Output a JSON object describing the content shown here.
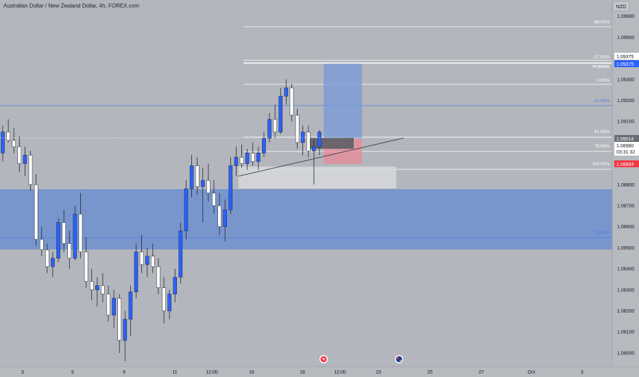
{
  "header": {
    "title": "Australian Dollar / New Zealand Dollar, 4h, FOREX.com"
  },
  "price_axis": {
    "currency_label": "NZD",
    "current_price_tag": "1.09014",
    "countdown_tag": "1.08980",
    "countdown_time": "03:31:32",
    "tp_tag": "1.09375",
    "tp_tag_blue": "1.09375",
    "sl_tag": "1.08894"
  },
  "fib_labels": {
    "ext_68": "-68.00%",
    "ext_27": "-27.00%",
    "tp_label": "TP DIARIO",
    "lvl_0": "0.00%",
    "lvl_618_upper": "61.80%",
    "lvl_618": "61.80%",
    "lvl_786": "78.60%",
    "lvl_100": "100.00%",
    "lvl_786_lower": "78.60%"
  },
  "colors": {
    "background": "#b3b6bc",
    "bull_candle": "#2962ff",
    "bear_candle": "#ffffff",
    "zone_blue": "#6f90cf",
    "sl_red": "#f23645",
    "axis_bg": "#b7babf"
  },
  "chart_data": {
    "type": "candlestick",
    "title": "Australian Dollar / New Zealand Dollar, 4h, FOREX.com",
    "ylabel": "NZD",
    "ylim": [
      1.0793,
      1.0972
    ],
    "ticks": [
      1.096,
      1.095,
      1.094,
      1.093,
      1.092,
      1.091,
      1.089,
      1.088,
      1.087,
      1.086,
      1.085,
      1.084,
      1.083,
      1.082,
      1.081,
      1.08
    ],
    "tick_labels": [
      "1.09600",
      "1.09500",
      "1.09400",
      "1.09300",
      "1.09200",
      "1.09100",
      "1.08900",
      "1.08800",
      "1.08700",
      "1.08600",
      "1.08500",
      "1.08400",
      "1.08300",
      "1.08200",
      "1.08100",
      "1.08000"
    ],
    "x_labels": [
      "3",
      "5",
      "9",
      "11",
      "12:00",
      "16",
      "18",
      "12:00",
      "23",
      "25",
      "27",
      "Oct",
      "3"
    ],
    "candles": [
      [
        1.0895,
        1.0908,
        1.0891,
        1.0905
      ],
      [
        1.0905,
        1.0911,
        1.09,
        1.0901
      ],
      [
        1.0901,
        1.0907,
        1.0895,
        1.0898
      ],
      [
        1.0898,
        1.0903,
        1.0886,
        1.089
      ],
      [
        1.089,
        1.0898,
        1.0884,
        1.0894
      ],
      [
        1.0894,
        1.0896,
        1.0877,
        1.088
      ],
      [
        1.088,
        1.0885,
        1.0851,
        1.0854
      ],
      [
        1.0854,
        1.086,
        1.0846,
        1.0849
      ],
      [
        1.0849,
        1.0852,
        1.0838,
        1.0841
      ],
      [
        1.0841,
        1.0848,
        1.0836,
        1.0845
      ],
      [
        1.0845,
        1.0864,
        1.0843,
        1.0862
      ],
      [
        1.0862,
        1.0868,
        1.0848,
        1.0852
      ],
      [
        1.0852,
        1.0858,
        1.084,
        1.0845
      ],
      [
        1.0845,
        1.087,
        1.0844,
        1.0866
      ],
      [
        1.0866,
        1.0876,
        1.0845,
        1.0848
      ],
      [
        1.0848,
        1.0855,
        1.0831,
        1.0834
      ],
      [
        1.0834,
        1.084,
        1.0825,
        1.083
      ],
      [
        1.083,
        1.0836,
        1.0822,
        1.0832
      ],
      [
        1.0832,
        1.0838,
        1.0824,
        1.0828
      ],
      [
        1.0828,
        1.0832,
        1.0815,
        1.0818
      ],
      [
        1.0818,
        1.083,
        1.0812,
        1.0826
      ],
      [
        1.0826,
        1.0828,
        1.08,
        1.0806
      ],
      [
        1.0806,
        1.082,
        1.0796,
        1.0816
      ],
      [
        1.0816,
        1.0832,
        1.0808,
        1.0829
      ],
      [
        1.0829,
        1.0852,
        1.0826,
        1.0848
      ],
      [
        1.0848,
        1.0856,
        1.0838,
        1.0842
      ],
      [
        1.0842,
        1.085,
        1.0836,
        1.0846
      ],
      [
        1.0846,
        1.0852,
        1.0838,
        1.0841
      ],
      [
        1.0841,
        1.0845,
        1.0828,
        1.0831
      ],
      [
        1.0831,
        1.0836,
        1.0814,
        1.082
      ],
      [
        1.082,
        1.083,
        1.0816,
        1.0828
      ],
      [
        1.0828,
        1.084,
        1.0824,
        1.0836
      ],
      [
        1.0836,
        1.0862,
        1.0833,
        1.0858
      ],
      [
        1.0858,
        1.0882,
        1.0854,
        1.0878
      ],
      [
        1.0878,
        1.0894,
        1.0874,
        1.0889
      ],
      [
        1.0889,
        1.0893,
        1.0875,
        1.0879
      ],
      [
        1.0879,
        1.0888,
        1.0862,
        1.0882
      ],
      [
        1.0882,
        1.089,
        1.0872,
        1.0876
      ],
      [
        1.0876,
        1.0882,
        1.0866,
        1.087
      ],
      [
        1.087,
        1.0876,
        1.0856,
        1.086
      ],
      [
        1.086,
        1.0873,
        1.0853,
        1.0868
      ],
      [
        1.0868,
        1.0893,
        1.0866,
        1.0889
      ],
      [
        1.0889,
        1.0898,
        1.0884,
        1.0893
      ],
      [
        1.0893,
        1.0899,
        1.0888,
        1.089
      ],
      [
        1.089,
        1.0897,
        1.0887,
        1.0895
      ],
      [
        1.0895,
        1.09,
        1.0889,
        1.0891
      ],
      [
        1.0891,
        1.0898,
        1.0887,
        1.0895
      ],
      [
        1.0895,
        1.0905,
        1.0893,
        1.0902
      ],
      [
        1.0902,
        1.0914,
        1.09,
        1.0911
      ],
      [
        1.0911,
        1.0918,
        1.0902,
        1.0905
      ],
      [
        1.0905,
        1.0926,
        1.0904,
        1.0922
      ],
      [
        1.0922,
        1.093,
        1.0918,
        1.0926
      ],
      [
        1.0926,
        1.0928,
        1.091,
        1.0913
      ],
      [
        1.0913,
        1.0916,
        1.0897,
        1.09
      ],
      [
        1.09,
        1.0908,
        1.0894,
        1.0905
      ],
      [
        1.0905,
        1.0908,
        1.0893,
        1.0896
      ],
      [
        1.0896,
        1.0901,
        1.088,
        1.0898
      ],
      [
        1.0898,
        1.0906,
        1.0894,
        1.0905
      ]
    ]
  }
}
